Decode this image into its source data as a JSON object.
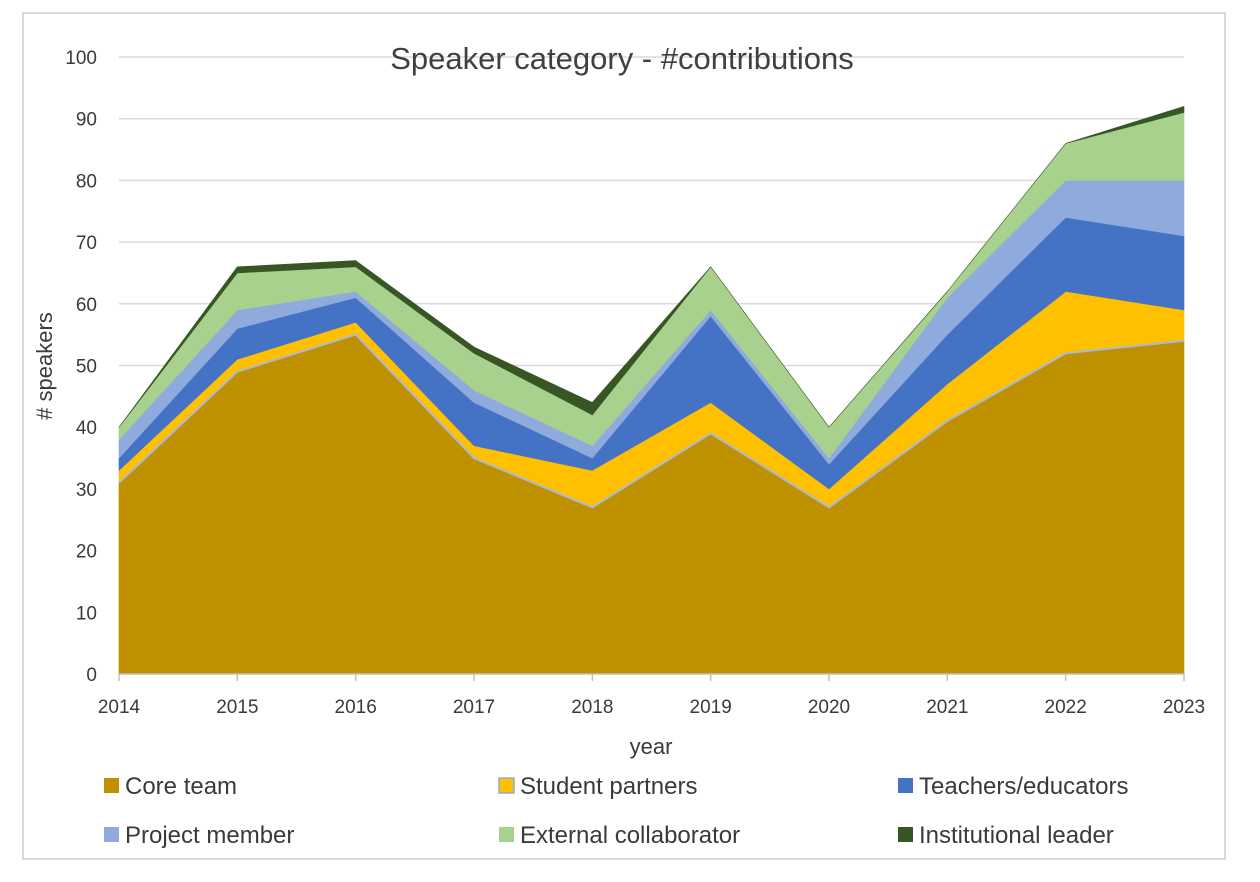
{
  "chart_data": {
    "type": "area",
    "stacked": true,
    "title": "Speaker category - #contributions",
    "xlabel": "year",
    "ylabel": "# speakers",
    "ylim": [
      0,
      100
    ],
    "yticks": [
      "0",
      "10",
      "20",
      "30",
      "40",
      "50",
      "60",
      "70",
      "80",
      "90",
      "100"
    ],
    "categories": [
      "2014",
      "2015",
      "2016",
      "2017",
      "2018",
      "2019",
      "2020",
      "2021",
      "2022",
      "2023"
    ],
    "grid": true,
    "legend_position": "bottom",
    "series": [
      {
        "name": "Core team",
        "color": "#bf9000",
        "values": [
          31,
          49,
          55,
          35,
          27,
          39,
          27,
          41,
          52,
          54
        ]
      },
      {
        "name": "Student partners",
        "color": "#ffc000",
        "values": [
          2,
          2,
          2,
          2,
          6,
          5,
          3,
          6,
          10,
          5
        ]
      },
      {
        "name": "Teachers/educators",
        "color": "#4472c4",
        "values": [
          2,
          5,
          4,
          7,
          2,
          14,
          4,
          8,
          12,
          12
        ]
      },
      {
        "name": "Project member",
        "color": "#8faadc",
        "values": [
          3,
          3,
          1,
          2,
          2,
          1,
          1,
          6,
          6,
          9
        ]
      },
      {
        "name": "External collaborator",
        "color": "#a9d18e",
        "values": [
          2,
          6,
          4,
          6,
          5,
          7,
          5,
          1,
          6,
          11
        ]
      },
      {
        "name": "Institutional leader",
        "color": "#375623",
        "values": [
          0,
          1,
          1,
          1,
          2,
          0,
          0,
          0,
          0,
          1
        ]
      }
    ]
  }
}
